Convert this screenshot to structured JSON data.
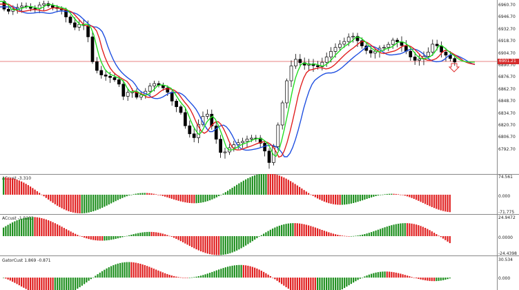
{
  "colors": {
    "bull": "#1e8f1e",
    "bear": "#e01f1f",
    "ma_fast": "#22dd22",
    "ma_mid": "#e01f1f",
    "ma_slow": "#1f4fe0",
    "price_line": "#e05a5a",
    "axis": "#888888"
  },
  "main": {
    "ticks": [
      "6960.70",
      "6946.70",
      "6932.70",
      "6918.70",
      "6904.70",
      "6890.70",
      "6876.70",
      "6862.70",
      "6848.70",
      "6834.70",
      "6820.70",
      "6806.70",
      "6792.70"
    ],
    "price_tag": "6901.21"
  },
  "pane1": {
    "title": "ACcust -3.310",
    "ticks": [
      "74.561",
      "0.000",
      "-71.775"
    ]
  },
  "pane2": {
    "title": "ACcust -1.5202",
    "ticks": [
      "24.9472",
      "0.0000",
      "-24.4398"
    ]
  },
  "pane3": {
    "title": "GatorCust 1.869 -0.871",
    "ticks": [
      "30.534",
      "0.000"
    ]
  },
  "chart_data": [
    {
      "type": "candlestick",
      "ylim": [
        6785,
        6970
      ],
      "yticks": [
        6960.7,
        6946.7,
        6932.7,
        6918.7,
        6904.7,
        6890.7,
        6876.7,
        6862.7,
        6848.7,
        6834.7,
        6820.7,
        6806.7,
        6792.7
      ],
      "current_price": 6901.21
    },
    {
      "type": "histogram",
      "title": "ACcust -3.310",
      "ylim": [
        -71.775,
        74.561
      ]
    },
    {
      "type": "histogram",
      "title": "ACcust -1.5202",
      "ylim": [
        -24.4398,
        24.9472
      ]
    },
    {
      "type": "histogram",
      "title": "GatorCust 1.869 -0.871",
      "ylim": [
        -30.534,
        30.534
      ]
    }
  ]
}
